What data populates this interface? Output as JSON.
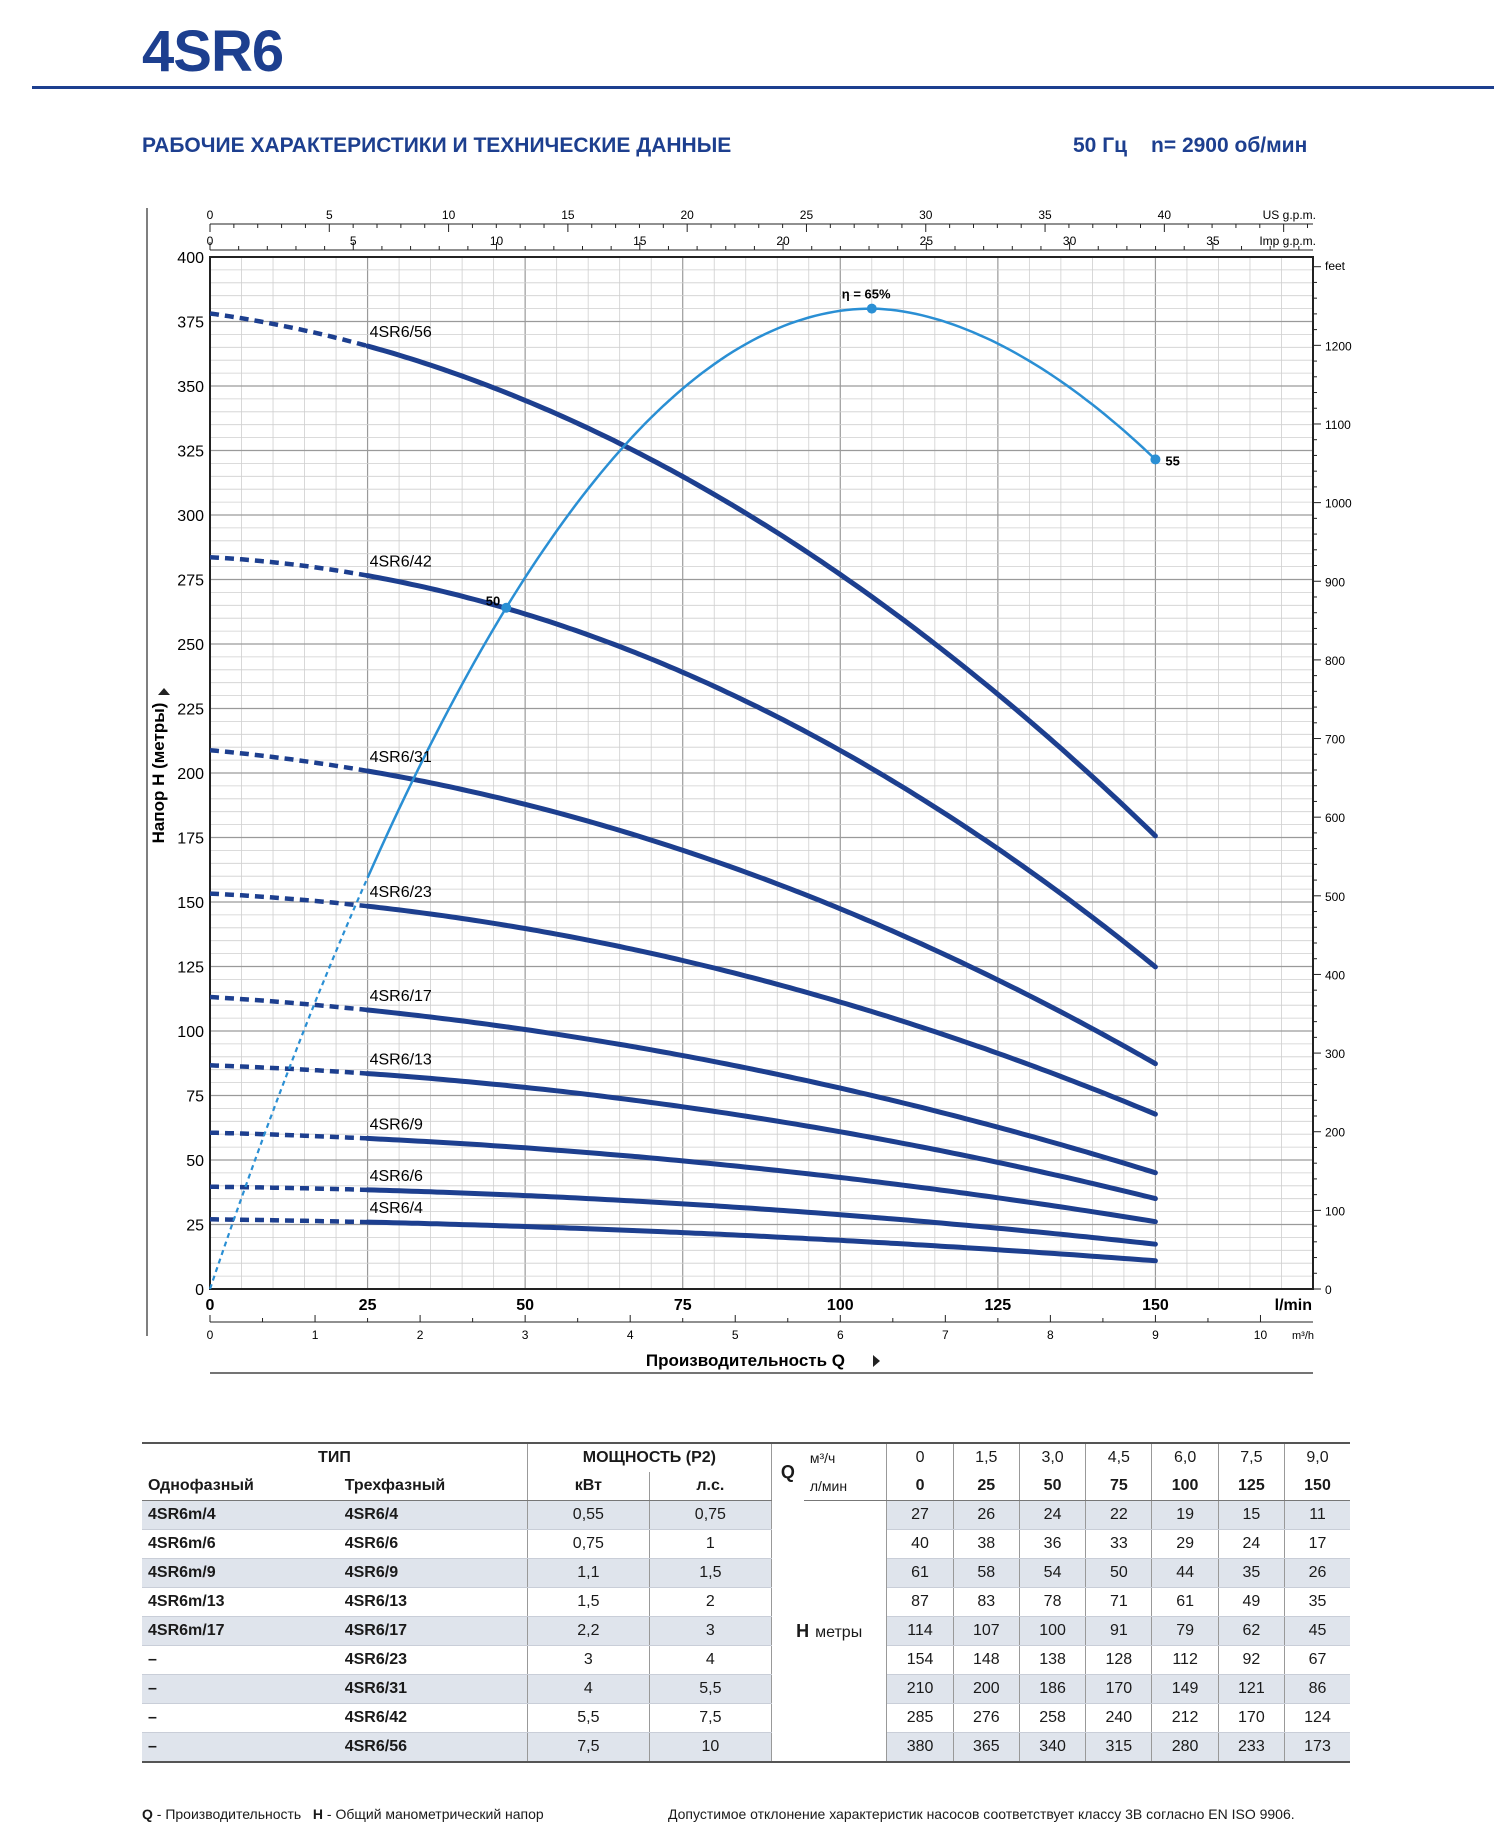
{
  "header": {
    "model": "4SR6",
    "subtitle": "РАБОЧИЕ ХАРАКТЕРИСТИКИ И ТЕХНИЧЕСКИЕ ДАННЫЕ",
    "frequency": "50 Гц",
    "speed": "n= 2900 об/мин"
  },
  "colors": {
    "brand": "#1d3f8f",
    "curve": "#1d3f8f",
    "efficiency": "#2a8fd4",
    "row_shade": "#dfe4ec"
  },
  "chart_data": {
    "type": "line",
    "title": "",
    "ylabel": "Напор H (метры)",
    "xlabel": "Производительность Q",
    "x_unit": "l/min",
    "ylim": [
      0,
      400
    ],
    "xlim": [
      0,
      175
    ],
    "x_ticks": [
      0,
      25,
      50,
      75,
      100,
      125,
      150
    ],
    "y_ticks": [
      0,
      25,
      50,
      75,
      100,
      125,
      150,
      175,
      200,
      225,
      250,
      275,
      300,
      325,
      350,
      375,
      400
    ],
    "m3h_axis": {
      "unit": "m³/h",
      "ticks": [
        "0",
        "1",
        "2",
        "3",
        "4",
        "5",
        "6",
        "7",
        "8",
        "9",
        "10"
      ]
    },
    "us_gpm_axis": {
      "unit": "US g.p.m.",
      "ticks": [
        "0",
        "5",
        "10",
        "15",
        "20",
        "25",
        "30",
        "35",
        "40"
      ]
    },
    "imp_gpm_axis": {
      "unit": "Imp g.p.m.",
      "ticks": [
        "0",
        "5",
        "10",
        "15",
        "20",
        "25",
        "30",
        "35"
      ]
    },
    "feet_axis": {
      "unit": "feet",
      "ticks": [
        "0",
        "100",
        "200",
        "300",
        "400",
        "500",
        "600",
        "700",
        "800",
        "900",
        "1000",
        "1100",
        "1200"
      ]
    },
    "x": [
      0,
      25,
      50,
      75,
      100,
      125,
      150
    ],
    "series": [
      {
        "name": "4SR6/4",
        "values": [
          27,
          26,
          24,
          22,
          19,
          15,
          11
        ]
      },
      {
        "name": "4SR6/6",
        "values": [
          40,
          38,
          36,
          33,
          29,
          24,
          17
        ]
      },
      {
        "name": "4SR6/9",
        "values": [
          61,
          58,
          54,
          50,
          44,
          35,
          26
        ]
      },
      {
        "name": "4SR6/13",
        "values": [
          87,
          83,
          78,
          71,
          61,
          49,
          35
        ]
      },
      {
        "name": "4SR6/17",
        "values": [
          114,
          107,
          100,
          91,
          79,
          62,
          45
        ]
      },
      {
        "name": "4SR6/23",
        "values": [
          154,
          148,
          138,
          128,
          112,
          92,
          67
        ]
      },
      {
        "name": "4SR6/31",
        "values": [
          210,
          200,
          186,
          170,
          149,
          121,
          86
        ]
      },
      {
        "name": "4SR6/42",
        "values": [
          285,
          276,
          258,
          240,
          212,
          170,
          124
        ]
      },
      {
        "name": "4SR6/56",
        "values": [
          380,
          365,
          340,
          315,
          280,
          233,
          173
        ]
      }
    ],
    "efficiency": {
      "title": "η = 65%",
      "points": [
        {
          "q": 47,
          "label": "50"
        },
        {
          "q": 105,
          "label": ""
        },
        {
          "q": 150,
          "label": "55"
        }
      ],
      "peak_label": "η = 65%"
    },
    "grid": true
  },
  "table": {
    "head_type": "ТИП",
    "head_power": "МОЩНОСТЬ (P2)",
    "head_q": "Q",
    "unit_m3h": "м³/ч",
    "unit_lmin": "л/мин",
    "col_single": "Однофазный",
    "col_three": "Трехфазный",
    "col_kw": "кВт",
    "col_hp": "л.с.",
    "h_label": "H",
    "h_unit": "метры",
    "q_m3h": [
      "0",
      "1,5",
      "3,0",
      "4,5",
      "6,0",
      "7,5",
      "9,0"
    ],
    "q_lmin": [
      "0",
      "25",
      "50",
      "75",
      "100",
      "125",
      "150"
    ],
    "rows": [
      {
        "single": "4SR6m/4",
        "three": "4SR6/4",
        "kw": "0,55",
        "hp": "0,75",
        "h": [
          "27",
          "26",
          "24",
          "22",
          "19",
          "15",
          "11"
        ]
      },
      {
        "single": "4SR6m/6",
        "three": "4SR6/6",
        "kw": "0,75",
        "hp": "1",
        "h": [
          "40",
          "38",
          "36",
          "33",
          "29",
          "24",
          "17"
        ]
      },
      {
        "single": "4SR6m/9",
        "three": "4SR6/9",
        "kw": "1,1",
        "hp": "1,5",
        "h": [
          "61",
          "58",
          "54",
          "50",
          "44",
          "35",
          "26"
        ]
      },
      {
        "single": "4SR6m/13",
        "three": "4SR6/13",
        "kw": "1,5",
        "hp": "2",
        "h": [
          "87",
          "83",
          "78",
          "71",
          "61",
          "49",
          "35"
        ]
      },
      {
        "single": "4SR6m/17",
        "three": "4SR6/17",
        "kw": "2,2",
        "hp": "3",
        "h": [
          "114",
          "107",
          "100",
          "91",
          "79",
          "62",
          "45"
        ]
      },
      {
        "single": "–",
        "three": "4SR6/23",
        "kw": "3",
        "hp": "4",
        "h": [
          "154",
          "148",
          "138",
          "128",
          "112",
          "92",
          "67"
        ]
      },
      {
        "single": "–",
        "three": "4SR6/31",
        "kw": "4",
        "hp": "5,5",
        "h": [
          "210",
          "200",
          "186",
          "170",
          "149",
          "121",
          "86"
        ]
      },
      {
        "single": "–",
        "three": "4SR6/42",
        "kw": "5,5",
        "hp": "7,5",
        "h": [
          "285",
          "276",
          "258",
          "240",
          "212",
          "170",
          "124"
        ]
      },
      {
        "single": "–",
        "three": "4SR6/56",
        "kw": "7,5",
        "hp": "10",
        "h": [
          "380",
          "365",
          "340",
          "315",
          "280",
          "233",
          "173"
        ]
      }
    ]
  },
  "footer": {
    "legend_q": "Q",
    "legend_q_text": " - Производительность",
    "legend_h": "H",
    "legend_h_text": " - Общий манометрический напор",
    "tolerance": "Допустимое отклонение характеристик насосов соответствует классу 3B согласно EN ISO 9906."
  }
}
